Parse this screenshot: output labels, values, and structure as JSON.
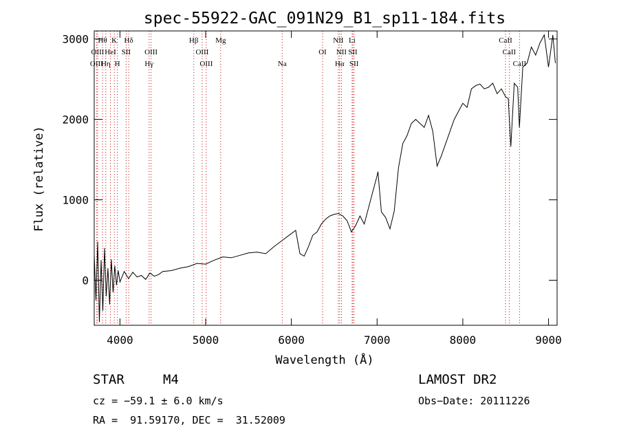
{
  "chart_data": {
    "type": "line",
    "title": "spec-55922-GAC_091N29_B1_sp11-184.fits",
    "xlabel": "Wavelength (Å)",
    "ylabel": "Flux (relative)",
    "xlim": [
      3700,
      9100
    ],
    "ylim": [
      -560,
      3100
    ],
    "x_ticks": [
      4000,
      5000,
      6000,
      7000,
      8000,
      9000
    ],
    "y_ticks": [
      0,
      1000,
      2000,
      3000
    ],
    "grid": false,
    "series": [
      {
        "color": "#000000",
        "x": [
          3700,
          3720,
          3740,
          3760,
          3780,
          3800,
          3820,
          3840,
          3860,
          3880,
          3900,
          3920,
          3940,
          3960,
          3980,
          4000,
          4050,
          4100,
          4150,
          4200,
          4250,
          4300,
          4350,
          4400,
          4450,
          4500,
          4600,
          4700,
          4800,
          4900,
          5000,
          5100,
          5200,
          5300,
          5400,
          5500,
          5600,
          5700,
          5800,
          5900,
          6000,
          6050,
          6100,
          6150,
          6200,
          6250,
          6300,
          6350,
          6400,
          6450,
          6500,
          6550,
          6600,
          6650,
          6700,
          6750,
          6800,
          6850,
          6900,
          6950,
          7000,
          7010,
          7050,
          7100,
          7150,
          7200,
          7250,
          7300,
          7350,
          7400,
          7450,
          7500,
          7550,
          7600,
          7650,
          7700,
          7750,
          7800,
          7850,
          7900,
          7950,
          8000,
          8050,
          8100,
          8150,
          8200,
          8250,
          8300,
          8350,
          8400,
          8450,
          8500,
          8530,
          8560,
          8600,
          8640,
          8660,
          8700,
          8750,
          8800,
          8850,
          8900,
          8950,
          9000,
          9050,
          9080
        ],
        "y": [
          320,
          -250,
          480,
          -520,
          250,
          -380,
          400,
          -200,
          150,
          -300,
          260,
          -150,
          180,
          -60,
          120,
          -20,
          110,
          20,
          100,
          40,
          60,
          10,
          90,
          50,
          70,
          110,
          120,
          150,
          170,
          210,
          200,
          250,
          290,
          280,
          310,
          340,
          350,
          330,
          420,
          500,
          580,
          620,
          330,
          300,
          420,
          560,
          600,
          700,
          760,
          800,
          820,
          830,
          800,
          740,
          600,
          680,
          800,
          700,
          900,
          1100,
          1300,
          1350,
          850,
          780,
          640,
          860,
          1400,
          1700,
          1800,
          1950,
          2000,
          1950,
          1900,
          2050,
          1850,
          1420,
          1550,
          1700,
          1850,
          2000,
          2100,
          2200,
          2150,
          2380,
          2420,
          2440,
          2380,
          2400,
          2450,
          2320,
          2380,
          2280,
          2260,
          1660,
          2450,
          2400,
          1900,
          2650,
          2700,
          2900,
          2800,
          2950,
          3050,
          2650,
          3050,
          2700
        ]
      }
    ],
    "line_markers": [
      {
        "label": "Hθ",
        "x": 3797,
        "row": 0,
        "color": "#000000"
      },
      {
        "label": "K",
        "x": 3934,
        "row": 0,
        "color": "#000000"
      },
      {
        "label": "Hδ",
        "x": 4102,
        "row": 0,
        "color": "#000000"
      },
      {
        "label": "Hβ",
        "x": 4861,
        "row": 0,
        "color": "#000000"
      },
      {
        "label": "Mg",
        "x": 5175,
        "row": 0,
        "color": "#000000"
      },
      {
        "label": "NII",
        "x": 6548,
        "row": 0,
        "color": "#000000"
      },
      {
        "label": "Li",
        "x": 6708,
        "row": 0,
        "color": "#000000"
      },
      {
        "label": "CaII",
        "x": 8498,
        "row": 0,
        "color": "#000000"
      },
      {
        "label": "OIII",
        "x": 3740,
        "row": 1,
        "color": "#000000"
      },
      {
        "label": "HeI",
        "x": 3889,
        "row": 1,
        "color": "#000000"
      },
      {
        "label": "SII",
        "x": 4072,
        "row": 1,
        "color": "#000000"
      },
      {
        "label": "OIII",
        "x": 4363,
        "row": 1,
        "color": "#000000"
      },
      {
        "label": "OIII",
        "x": 4959,
        "row": 1,
        "color": "#000000"
      },
      {
        "label": "OI",
        "x": 6364,
        "row": 1,
        "color": "#000000"
      },
      {
        "label": "NII",
        "x": 6584,
        "row": 1,
        "color": "#000000"
      },
      {
        "label": "SII",
        "x": 6717,
        "row": 1,
        "color": "#000000"
      },
      {
        "label": "CaII",
        "x": 8542,
        "row": 1,
        "color": "#000000"
      },
      {
        "label": "OIII",
        "x": 3727,
        "row": 2,
        "color": "#000000"
      },
      {
        "label": "Hη",
        "x": 3835,
        "row": 2,
        "color": "#000000"
      },
      {
        "label": "H",
        "x": 3970,
        "row": 2,
        "color": "#000000"
      },
      {
        "label": "Hγ",
        "x": 4340,
        "row": 2,
        "color": "#000000"
      },
      {
        "label": "OIII",
        "x": 5007,
        "row": 2,
        "color": "#000000"
      },
      {
        "label": "Na",
        "x": 5893,
        "row": 2,
        "color": "#000000"
      },
      {
        "label": "Hα",
        "x": 6563,
        "row": 2,
        "color": "#000000"
      },
      {
        "label": "SII",
        "x": 6731,
        "row": 2,
        "color": "#000000"
      },
      {
        "label": "CaII",
        "x": 8662,
        "row": 2,
        "color": "#000000"
      }
    ],
    "line_color": "#cc0000"
  },
  "footer": {
    "object_type": "STAR",
    "subclass": "M4",
    "survey": "LAMOST DR2",
    "redshift_text": "cz = −59.1 ± 6.0 km/s",
    "obs_date_text": "Obs−Date: 20111226",
    "coords_text": "RA =  91.59170, DEC =  31.52009"
  }
}
